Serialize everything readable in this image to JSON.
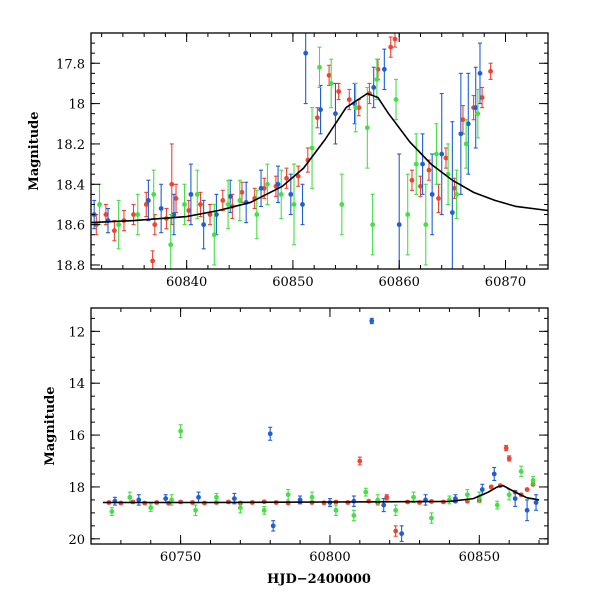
{
  "colors": {
    "blue": "#1f5fd6",
    "green": "#44e044",
    "red": "#ee4433",
    "model": "#000000"
  },
  "chart_data": [
    {
      "type": "scatter",
      "panel": "top",
      "xlabel": "",
      "ylabel": "Magnitude",
      "xlim": [
        60831,
        60874
      ],
      "ylim": [
        18.82,
        17.65
      ],
      "y_inverted": true,
      "grid": false,
      "xticks_major": [
        60840,
        60850,
        60860,
        60870
      ],
      "xtick_labels": [
        "60840",
        "60850",
        "60860",
        "60870"
      ],
      "yticks_major": [
        17.8,
        18,
        18.2,
        18.4,
        18.6,
        18.8
      ],
      "ytick_labels": [
        "17.8",
        "18",
        "18.2",
        "18.4",
        "18.6",
        "18.8"
      ],
      "model_curve": {
        "x": [
          60831,
          60835,
          60840,
          60843,
          60846,
          60849,
          60851,
          60853,
          60855,
          60857,
          60858,
          60859,
          60861,
          60863,
          60865,
          60867,
          60869,
          60871,
          60874
        ],
        "y": [
          18.59,
          18.58,
          18.56,
          18.53,
          18.49,
          18.41,
          18.32,
          18.18,
          18.02,
          17.95,
          17.97,
          18.05,
          18.19,
          18.3,
          18.38,
          18.44,
          18.48,
          18.51,
          18.53
        ]
      },
      "series": [
        {
          "color_key": "red",
          "x": [
            60831.5,
            60832.4,
            60833.2,
            60834.1,
            60835.0,
            60836.2,
            60837.0,
            60838.1,
            60839.0,
            60840.2,
            60841.3,
            60842.2,
            60843.4,
            60844.3,
            60845.2,
            60846.4,
            60847.3,
            60848.4,
            60849.4,
            60850.5,
            60851.4,
            60852.3,
            60853.4,
            60854.3,
            60855.3,
            60856.2,
            60857.2,
            60858.0,
            60859.2,
            60859.6,
            60861.2,
            60862.0,
            60862.8,
            60863.7,
            60864.4,
            60865.2,
            60866.0,
            60867.0,
            60867.8,
            60868.6,
            60838.6,
            60836.8
          ],
          "y": [
            18.6,
            18.55,
            18.63,
            18.58,
            18.55,
            18.5,
            18.6,
            18.57,
            18.47,
            18.53,
            18.5,
            18.55,
            18.48,
            18.51,
            18.44,
            18.47,
            18.42,
            18.41,
            18.37,
            18.36,
            18.28,
            18.07,
            17.86,
            17.94,
            17.98,
            18.02,
            17.95,
            17.83,
            17.72,
            17.68,
            18.38,
            18.41,
            18.33,
            18.47,
            18.27,
            18.42,
            18.08,
            18.02,
            17.97,
            17.84,
            18.4,
            18.78
          ],
          "err": [
            0.05,
            0.05,
            0.05,
            0.05,
            0.05,
            0.06,
            0.05,
            0.05,
            0.07,
            0.05,
            0.06,
            0.05,
            0.05,
            0.06,
            0.05,
            0.05,
            0.05,
            0.05,
            0.05,
            0.05,
            0.06,
            0.05,
            0.05,
            0.04,
            0.05,
            0.04,
            0.05,
            0.05,
            0.05,
            0.04,
            0.05,
            0.05,
            0.05,
            0.07,
            0.05,
            0.05,
            0.07,
            0.06,
            0.05,
            0.04,
            0.2,
            0.05
          ]
        },
        {
          "color_key": "blue",
          "x": [
            60831.3,
            60832.6,
            60836.4,
            60837.6,
            60838.8,
            60840.4,
            60841.6,
            60842.8,
            60844.1,
            60845.6,
            60847.0,
            60848.6,
            60849.8,
            60851.2,
            60852.6,
            60854.0,
            60855.8,
            60857.6,
            60858.6,
            60860.0,
            60863.1,
            60864.0,
            60865.0,
            60865.8,
            60866.5,
            60867.2,
            60867.6,
            60862.2,
            60850.9
          ],
          "y": [
            18.55,
            18.58,
            18.48,
            18.52,
            18.55,
            18.45,
            18.6,
            18.55,
            18.46,
            18.49,
            18.42,
            18.4,
            18.45,
            17.75,
            18.03,
            18.05,
            18.0,
            17.92,
            17.83,
            18.6,
            18.45,
            18.25,
            18.54,
            18.15,
            18.1,
            18.02,
            17.85,
            18.3,
            18.5
          ],
          "err": [
            0.07,
            0.06,
            0.1,
            0.12,
            0.1,
            0.15,
            0.12,
            0.1,
            0.08,
            0.1,
            0.09,
            0.09,
            0.1,
            0.25,
            0.12,
            0.15,
            0.1,
            0.1,
            0.1,
            0.35,
            0.2,
            0.3,
            0.45,
            0.3,
            0.25,
            0.2,
            0.15,
            0.15,
            0.1
          ]
        },
        {
          "color_key": "green",
          "x": [
            60831.8,
            60833.6,
            60835.4,
            60836.9,
            60838.5,
            60839.8,
            60841.0,
            60842.6,
            60843.9,
            60845.0,
            60846.6,
            60847.6,
            60848.9,
            60850.1,
            60851.8,
            60852.5,
            60853.6,
            60854.6,
            60855.9,
            60857.0,
            60857.9,
            60859.7,
            60860.8,
            60861.6,
            60862.5,
            60863.5,
            60864.6,
            60865.4,
            60866.3,
            60867.4,
            60857.5
          ],
          "y": [
            18.5,
            18.6,
            18.55,
            18.45,
            18.7,
            18.5,
            18.45,
            18.65,
            18.5,
            18.48,
            18.55,
            18.4,
            18.45,
            18.5,
            18.22,
            17.82,
            17.9,
            18.5,
            18.02,
            18.12,
            17.88,
            17.98,
            18.55,
            18.3,
            18.6,
            18.25,
            18.35,
            18.45,
            18.2,
            18.05,
            18.6
          ],
          "err": [
            0.1,
            0.12,
            0.1,
            0.12,
            0.15,
            0.1,
            0.12,
            0.15,
            0.12,
            0.1,
            0.12,
            0.1,
            0.12,
            0.2,
            0.2,
            0.1,
            0.12,
            0.15,
            0.12,
            0.2,
            0.1,
            0.1,
            0.2,
            0.15,
            0.2,
            0.15,
            0.15,
            0.12,
            0.12,
            0.12,
            0.15
          ]
        }
      ]
    },
    {
      "type": "scatter",
      "panel": "bottom",
      "xlabel": "HJD−2400000",
      "ylabel": "Magnitude",
      "xlim": [
        60720,
        60873
      ],
      "ylim": [
        20.2,
        11.1
      ],
      "y_inverted": true,
      "grid": false,
      "xticks_major": [
        60750,
        60800,
        60850
      ],
      "xtick_labels": [
        "60750",
        "60800",
        "60850"
      ],
      "yticks_major": [
        12,
        14,
        16,
        18,
        20
      ],
      "ytick_labels": [
        "12",
        "14",
        "16",
        "18",
        "20"
      ],
      "model_curve": {
        "x": [
          60724,
          60760,
          60800,
          60840,
          60848,
          60853,
          60856,
          60858,
          60862,
          60866,
          60870
        ],
        "y": [
          18.6,
          18.6,
          18.58,
          18.56,
          18.45,
          18.2,
          18.0,
          17.95,
          18.2,
          18.42,
          18.5
        ]
      },
      "series": [
        {
          "color_key": "red",
          "x": [
            60726,
            60730,
            60734,
            60738,
            60742,
            60746,
            60750,
            60754,
            60758,
            60762,
            60766,
            60770,
            60774,
            60778,
            60782,
            60786,
            60790,
            60794,
            60798,
            60802,
            60806,
            60810,
            60813,
            60816,
            60819,
            60822,
            60826,
            60830,
            60834,
            60838,
            60842,
            60846,
            60850,
            60854,
            60857,
            60859,
            60860,
            60862,
            60864,
            60866,
            60868
          ],
          "y": [
            18.6,
            18.62,
            18.58,
            18.62,
            18.6,
            18.63,
            18.58,
            18.6,
            18.62,
            18.6,
            18.58,
            18.62,
            18.6,
            18.57,
            18.6,
            18.62,
            18.58,
            18.6,
            18.61,
            18.58,
            18.6,
            17.0,
            18.55,
            18.6,
            18.4,
            19.7,
            18.58,
            18.6,
            18.56,
            18.58,
            18.55,
            18.55,
            18.52,
            18.0,
            17.95,
            16.5,
            16.9,
            18.2,
            18.3,
            18.1,
            17.9
          ],
          "err": [
            0.05,
            0.05,
            0.05,
            0.05,
            0.05,
            0.05,
            0.05,
            0.05,
            0.05,
            0.05,
            0.05,
            0.05,
            0.05,
            0.05,
            0.05,
            0.05,
            0.05,
            0.05,
            0.05,
            0.05,
            0.05,
            0.15,
            0.05,
            0.05,
            0.1,
            0.2,
            0.05,
            0.05,
            0.05,
            0.05,
            0.05,
            0.05,
            0.05,
            0.05,
            0.05,
            0.1,
            0.1,
            0.05,
            0.05,
            0.05,
            0.05
          ]
        },
        {
          "color_key": "blue",
          "x": [
            60728,
            60736,
            60745,
            60756,
            60768,
            60780,
            60781,
            60790,
            60800,
            60808,
            60814,
            60818,
            60824,
            60832,
            60842,
            60851,
            60855,
            60862,
            60866,
            60869
          ],
          "y": [
            18.55,
            18.5,
            18.45,
            18.4,
            18.45,
            15.95,
            19.5,
            18.5,
            18.6,
            18.55,
            11.6,
            18.7,
            19.8,
            18.5,
            18.45,
            18.1,
            17.5,
            18.45,
            18.9,
            18.6
          ],
          "err": [
            0.15,
            0.2,
            0.15,
            0.2,
            0.2,
            0.25,
            0.2,
            0.15,
            0.15,
            0.2,
            0.1,
            0.25,
            0.3,
            0.2,
            0.15,
            0.2,
            0.25,
            0.3,
            0.4,
            0.3
          ],
          "note_pt": "none"
        },
        {
          "color_key": "green",
          "x": [
            60727,
            60733,
            60740,
            60747,
            60750,
            60755,
            60762,
            60770,
            60778,
            60786,
            60794,
            60802,
            60808,
            60812,
            60816,
            60822,
            60828,
            60834,
            60840,
            60846,
            60850,
            60856,
            60860,
            60864,
            60868
          ],
          "y": [
            18.95,
            18.4,
            18.8,
            18.5,
            15.85,
            18.9,
            18.4,
            18.8,
            18.9,
            18.3,
            18.4,
            18.9,
            19.1,
            18.2,
            18.5,
            18.9,
            18.4,
            19.2,
            18.5,
            18.3,
            18.4,
            18.7,
            18.3,
            17.4,
            17.75
          ],
          "err": [
            0.15,
            0.2,
            0.15,
            0.2,
            0.25,
            0.2,
            0.15,
            0.2,
            0.15,
            0.2,
            0.2,
            0.2,
            0.2,
            0.15,
            0.2,
            0.2,
            0.2,
            0.2,
            0.15,
            0.2,
            0.2,
            0.15,
            0.2,
            0.2,
            0.15
          ]
        }
      ]
    }
  ]
}
